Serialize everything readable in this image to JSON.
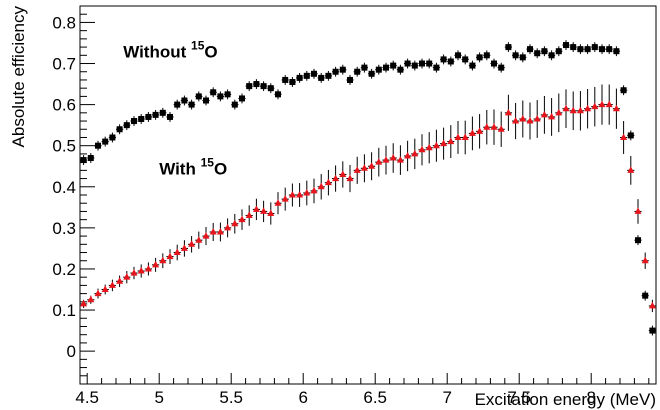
{
  "chart_data": {
    "type": "scatter",
    "title": "",
    "xlabel": "Excitation energy (MeV)",
    "ylabel": "Absolute efficiency",
    "xlim": [
      4.45,
      8.45
    ],
    "ylim": [
      -0.08,
      0.84
    ],
    "x_ticks": [
      "4.5",
      "5",
      "5.5",
      "6",
      "6.5",
      "7",
      "7.5",
      "8"
    ],
    "y_ticks": [
      "0",
      "0.1",
      "0.2",
      "0.3",
      "0.4",
      "0.5",
      "0.6",
      "0.7",
      "0.8"
    ],
    "grid": false,
    "legend": "none",
    "annotations": [
      {
        "prefix": "Without ",
        "sup": "15",
        "suffix": "O",
        "x": 4.75,
        "y": 0.715
      },
      {
        "prefix": "With ",
        "sup": "15",
        "suffix": "O",
        "x": 5.0,
        "y": 0.43
      }
    ],
    "series": [
      {
        "color": "#000000",
        "marker": "square",
        "x": [
          4.475,
          4.525,
          4.575,
          4.625,
          4.675,
          4.725,
          4.775,
          4.825,
          4.875,
          4.925,
          4.975,
          5.025,
          5.075,
          5.125,
          5.175,
          5.225,
          5.275,
          5.325,
          5.375,
          5.425,
          5.475,
          5.525,
          5.575,
          5.625,
          5.675,
          5.725,
          5.775,
          5.825,
          5.875,
          5.925,
          5.975,
          6.025,
          6.075,
          6.125,
          6.175,
          6.225,
          6.275,
          6.325,
          6.375,
          6.425,
          6.475,
          6.525,
          6.575,
          6.625,
          6.675,
          6.725,
          6.775,
          6.825,
          6.875,
          6.925,
          6.975,
          7.025,
          7.075,
          7.125,
          7.175,
          7.225,
          7.275,
          7.325,
          7.375,
          7.425,
          7.475,
          7.525,
          7.575,
          7.625,
          7.675,
          7.725,
          7.775,
          7.825,
          7.875,
          7.925,
          7.975,
          8.025,
          8.075,
          8.125,
          8.175,
          8.225,
          8.275,
          8.325,
          8.375,
          8.425
        ],
        "y": [
          0.465,
          0.47,
          0.5,
          0.51,
          0.52,
          0.54,
          0.55,
          0.56,
          0.565,
          0.57,
          0.575,
          0.58,
          0.57,
          0.6,
          0.61,
          0.6,
          0.62,
          0.61,
          0.63,
          0.62,
          0.625,
          0.6,
          0.615,
          0.645,
          0.65,
          0.645,
          0.64,
          0.625,
          0.66,
          0.655,
          0.665,
          0.67,
          0.675,
          0.665,
          0.67,
          0.68,
          0.685,
          0.66,
          0.68,
          0.69,
          0.675,
          0.685,
          0.69,
          0.695,
          0.685,
          0.7,
          0.695,
          0.7,
          0.7,
          0.69,
          0.71,
          0.705,
          0.72,
          0.71,
          0.695,
          0.715,
          0.72,
          0.7,
          0.69,
          0.74,
          0.72,
          0.715,
          0.735,
          0.725,
          0.73,
          0.72,
          0.73,
          0.745,
          0.74,
          0.735,
          0.735,
          0.74,
          0.735,
          0.735,
          0.73,
          0.635,
          0.525,
          0.27,
          0.135,
          0.05
        ],
        "err": [
          0.012,
          0.012,
          0.012,
          0.012,
          0.012,
          0.012,
          0.012,
          0.012,
          0.012,
          0.012,
          0.012,
          0.012,
          0.012,
          0.012,
          0.012,
          0.012,
          0.012,
          0.012,
          0.012,
          0.012,
          0.012,
          0.012,
          0.012,
          0.012,
          0.012,
          0.012,
          0.012,
          0.012,
          0.012,
          0.012,
          0.012,
          0.012,
          0.012,
          0.012,
          0.012,
          0.012,
          0.012,
          0.012,
          0.012,
          0.012,
          0.012,
          0.012,
          0.012,
          0.012,
          0.012,
          0.012,
          0.012,
          0.012,
          0.012,
          0.012,
          0.012,
          0.012,
          0.012,
          0.012,
          0.012,
          0.012,
          0.012,
          0.012,
          0.012,
          0.012,
          0.012,
          0.012,
          0.012,
          0.012,
          0.012,
          0.012,
          0.012,
          0.012,
          0.012,
          0.012,
          0.012,
          0.012,
          0.012,
          0.012,
          0.012,
          0.012,
          0.012,
          0.012,
          0.012,
          0.012
        ]
      },
      {
        "color": "#e8141c",
        "marker": "triangle",
        "x": [
          4.475,
          4.525,
          4.575,
          4.625,
          4.675,
          4.725,
          4.775,
          4.825,
          4.875,
          4.925,
          4.975,
          5.025,
          5.075,
          5.125,
          5.175,
          5.225,
          5.275,
          5.325,
          5.375,
          5.425,
          5.475,
          5.525,
          5.575,
          5.625,
          5.675,
          5.725,
          5.775,
          5.825,
          5.875,
          5.925,
          5.975,
          6.025,
          6.075,
          6.125,
          6.175,
          6.225,
          6.275,
          6.325,
          6.375,
          6.425,
          6.475,
          6.525,
          6.575,
          6.625,
          6.675,
          6.725,
          6.775,
          6.825,
          6.875,
          6.925,
          6.975,
          7.025,
          7.075,
          7.125,
          7.175,
          7.225,
          7.275,
          7.325,
          7.375,
          7.425,
          7.475,
          7.525,
          7.575,
          7.625,
          7.675,
          7.725,
          7.775,
          7.825,
          7.875,
          7.925,
          7.975,
          8.025,
          8.075,
          8.125,
          8.175,
          8.225,
          8.275,
          8.325,
          8.375,
          8.425
        ],
        "y": [
          0.115,
          0.125,
          0.14,
          0.15,
          0.16,
          0.17,
          0.18,
          0.19,
          0.195,
          0.2,
          0.21,
          0.22,
          0.23,
          0.24,
          0.25,
          0.26,
          0.27,
          0.28,
          0.29,
          0.29,
          0.3,
          0.31,
          0.32,
          0.33,
          0.345,
          0.34,
          0.335,
          0.36,
          0.37,
          0.38,
          0.38,
          0.385,
          0.39,
          0.4,
          0.41,
          0.42,
          0.43,
          0.42,
          0.44,
          0.445,
          0.45,
          0.46,
          0.465,
          0.47,
          0.465,
          0.475,
          0.48,
          0.49,
          0.495,
          0.5,
          0.505,
          0.51,
          0.52,
          0.52,
          0.53,
          0.535,
          0.545,
          0.545,
          0.54,
          0.58,
          0.56,
          0.565,
          0.56,
          0.565,
          0.575,
          0.57,
          0.58,
          0.59,
          0.585,
          0.585,
          0.59,
          0.595,
          0.6,
          0.6,
          0.59,
          0.52,
          0.44,
          0.34,
          0.22,
          0.11
        ],
        "err": [
          0.01,
          0.01,
          0.012,
          0.012,
          0.014,
          0.014,
          0.015,
          0.015,
          0.016,
          0.016,
          0.017,
          0.018,
          0.018,
          0.019,
          0.02,
          0.02,
          0.021,
          0.022,
          0.022,
          0.023,
          0.023,
          0.024,
          0.025,
          0.025,
          0.026,
          0.026,
          0.027,
          0.027,
          0.028,
          0.028,
          0.029,
          0.03,
          0.03,
          0.031,
          0.031,
          0.032,
          0.032,
          0.033,
          0.033,
          0.034,
          0.034,
          0.035,
          0.035,
          0.036,
          0.036,
          0.037,
          0.037,
          0.038,
          0.038,
          0.039,
          0.039,
          0.04,
          0.04,
          0.041,
          0.041,
          0.042,
          0.042,
          0.043,
          0.043,
          0.044,
          0.044,
          0.045,
          0.045,
          0.046,
          0.046,
          0.046,
          0.047,
          0.047,
          0.047,
          0.048,
          0.048,
          0.048,
          0.049,
          0.049,
          0.049,
          0.04,
          0.035,
          0.03,
          0.02,
          0.015
        ]
      }
    ]
  }
}
